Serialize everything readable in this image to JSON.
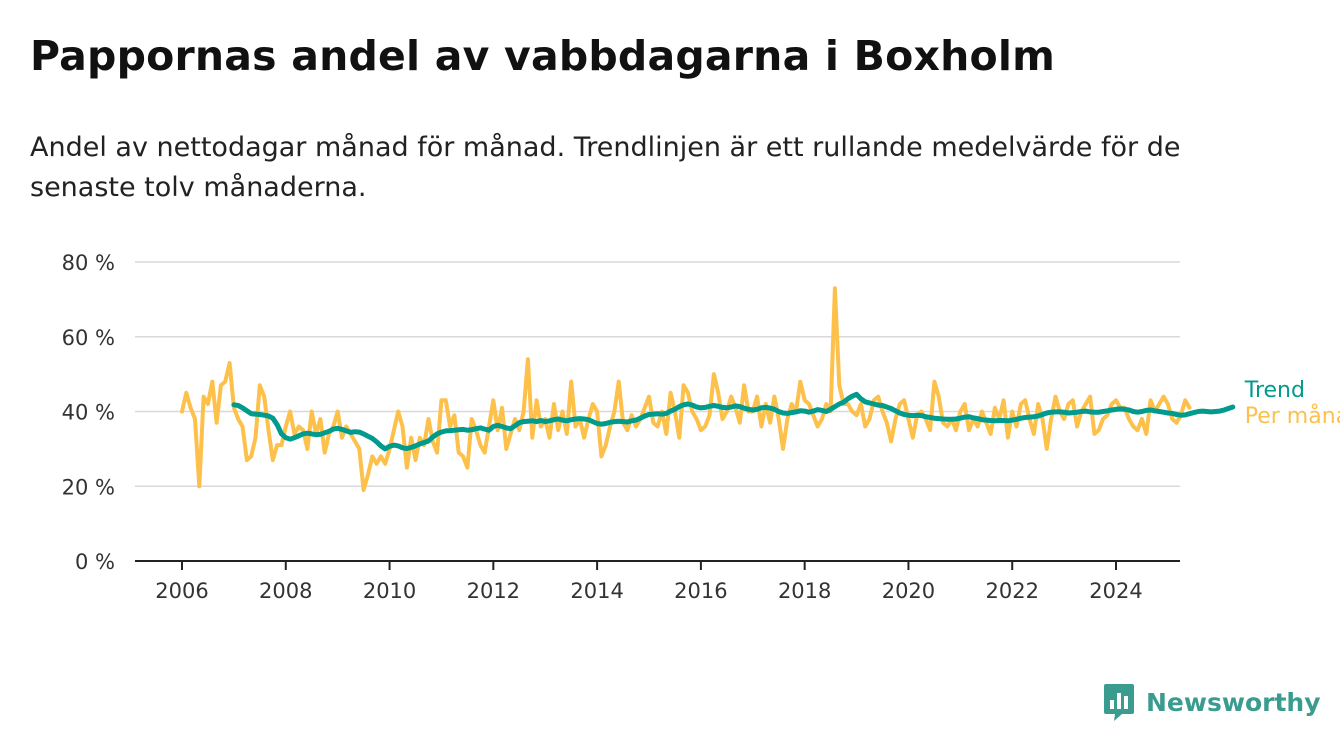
{
  "header": {
    "title": "Pappornas andel av vabbdagarna i Boxholm",
    "subtitle": "Andel av nettodagar månad för månad. Trendlinjen är ett rullande medelvärde för de senaste tolv månaderna."
  },
  "brand": {
    "name": "Newsworthy",
    "color": "#3a9b8f",
    "icon": "chart-bubble-icon"
  },
  "chart_data": {
    "type": "line",
    "title": "Pappornas andel av vabbdagarna i Boxholm",
    "xlabel": "",
    "ylabel": "",
    "xlim": [
      2006,
      2024.4
    ],
    "ylim": [
      0,
      80
    ],
    "x_ticks": [
      "2006",
      "2008",
      "2010",
      "2012",
      "2014",
      "2016",
      "2018",
      "2020",
      "2022",
      "2024"
    ],
    "y_ticks": [
      "0 %",
      "20 %",
      "40 %",
      "60 %",
      "80 %"
    ],
    "grid": true,
    "legend": "right-end labels",
    "series": [
      {
        "name": "Per månad",
        "color": "#fdc04a",
        "start": "2006-01",
        "values": [
          40,
          45,
          41,
          38,
          20,
          44,
          42,
          48,
          37,
          47,
          48,
          53,
          41,
          38,
          36,
          27,
          28,
          33,
          47,
          44,
          35,
          27,
          31,
          31,
          36,
          40,
          34,
          36,
          35,
          30,
          40,
          34,
          38,
          29,
          34,
          36,
          40,
          33,
          36,
          34,
          32,
          30,
          19,
          23,
          28,
          26,
          28,
          26,
          30,
          35,
          40,
          36,
          25,
          33,
          27,
          33,
          31,
          38,
          32,
          29,
          43,
          43,
          36,
          39,
          29,
          28,
          25,
          38,
          35,
          31,
          29,
          36,
          43,
          35,
          41,
          30,
          34,
          38,
          35,
          40,
          54,
          33,
          43,
          36,
          38,
          33,
          42,
          35,
          40,
          34,
          48,
          36,
          38,
          33,
          38,
          42,
          40,
          28,
          31,
          36,
          40,
          48,
          37,
          35,
          39,
          36,
          38,
          41,
          44,
          37,
          36,
          40,
          34,
          45,
          40,
          33,
          47,
          45,
          40,
          38,
          35,
          36,
          39,
          50,
          45,
          38,
          40,
          44,
          41,
          37,
          47,
          40,
          40,
          44,
          36,
          42,
          37,
          44,
          38,
          30,
          38,
          42,
          40,
          48,
          43,
          42,
          39,
          36,
          38,
          42,
          40,
          73,
          47,
          42,
          42,
          40,
          39,
          42,
          36,
          38,
          43,
          44,
          40,
          37,
          32,
          38,
          42,
          43,
          38,
          33,
          39,
          40,
          38,
          35,
          48,
          44,
          37,
          36,
          38,
          35,
          40,
          42,
          35,
          38,
          36,
          40,
          37,
          34,
          41,
          38,
          43,
          33,
          40,
          36,
          42,
          43,
          38,
          34,
          42,
          38,
          30,
          38,
          44,
          40,
          38,
          42,
          43,
          36,
          40,
          42,
          44,
          34,
          35,
          38,
          39,
          42,
          43,
          41,
          41,
          38,
          36,
          35,
          38,
          34,
          43,
          40,
          42,
          44,
          42,
          38,
          37,
          39,
          43,
          41
        ],
        "values_note": ""
      },
      {
        "name": "Trend",
        "color": "#009b8c",
        "start": "2007-01",
        "values": [
          41.8,
          41.6,
          41.0,
          40.2,
          39.4,
          39.3,
          39.2,
          39.0,
          38.8,
          38.2,
          36.5,
          34.0,
          33.0,
          32.6,
          33.0,
          33.5,
          34.0,
          34.2,
          34.0,
          33.8,
          33.9,
          34.3,
          34.7,
          35.3,
          35.5,
          35.2,
          34.8,
          34.4,
          34.6,
          34.5,
          34.0,
          33.4,
          32.8,
          31.9,
          30.8,
          30.0,
          30.7,
          31.0,
          30.8,
          30.3,
          30.1,
          30.4,
          30.8,
          31.3,
          31.7,
          32.1,
          33.2,
          34.0,
          34.5,
          34.8,
          34.9,
          35.0,
          35.1,
          35.2,
          35.0,
          35.1,
          35.4,
          35.6,
          35.3,
          35.0,
          36.0,
          36.3,
          36.0,
          35.6,
          35.4,
          36.2,
          37.0,
          37.3,
          37.4,
          37.5,
          37.3,
          37.6,
          37.3,
          37.5,
          37.8,
          38.0,
          37.7,
          37.5,
          37.8,
          38.0,
          38.1,
          38.0,
          37.8,
          37.3,
          36.8,
          36.6,
          36.8,
          37.1,
          37.3,
          37.4,
          37.3,
          37.2,
          37.5,
          37.7,
          38.2,
          38.8,
          39.2,
          39.3,
          39.4,
          39.3,
          39.5,
          40.1,
          40.6,
          41.3,
          41.8,
          42.0,
          41.7,
          41.2,
          41.0,
          41.1,
          41.4,
          41.6,
          41.4,
          41.1,
          41.0,
          41.2,
          41.5,
          41.3,
          40.9,
          40.6,
          40.4,
          40.6,
          41.0,
          41.1,
          40.9,
          40.6,
          40.0,
          39.6,
          39.5,
          39.7,
          39.9,
          40.2,
          40.1,
          39.8,
          40.1,
          40.5,
          40.3,
          40.0,
          40.6,
          41.3,
          42.0,
          42.5,
          43.4,
          44.1,
          44.6,
          43.4,
          42.6,
          42.3,
          42.0,
          41.7,
          41.6,
          41.2,
          40.8,
          40.2,
          39.6,
          39.2,
          39.0,
          38.9,
          39.0,
          38.9,
          38.6,
          38.4,
          38.2,
          38.1,
          38.0,
          37.9,
          37.9,
          38.0,
          38.2,
          38.5,
          38.6,
          38.3,
          38.1,
          37.8,
          37.7,
          37.6,
          37.5,
          37.6,
          37.6,
          37.5,
          37.7,
          37.9,
          38.2,
          38.4,
          38.5,
          38.6,
          38.8,
          39.2,
          39.6,
          39.8,
          39.9,
          39.9,
          39.8,
          39.6,
          39.7,
          39.8,
          40.0,
          40.1,
          39.9,
          39.8,
          39.8,
          40.0,
          40.2,
          40.4,
          40.6,
          40.7,
          40.6,
          40.4,
          40.0,
          39.8,
          40.0,
          40.3,
          40.4,
          40.2,
          40.0,
          39.8,
          39.6,
          39.5,
          39.2,
          39.0,
          39.1,
          39.4,
          39.7,
          40.0,
          40.1,
          40.0,
          39.9,
          40.0,
          40.1,
          40.4,
          40.8,
          41.2
        ]
      }
    ]
  }
}
